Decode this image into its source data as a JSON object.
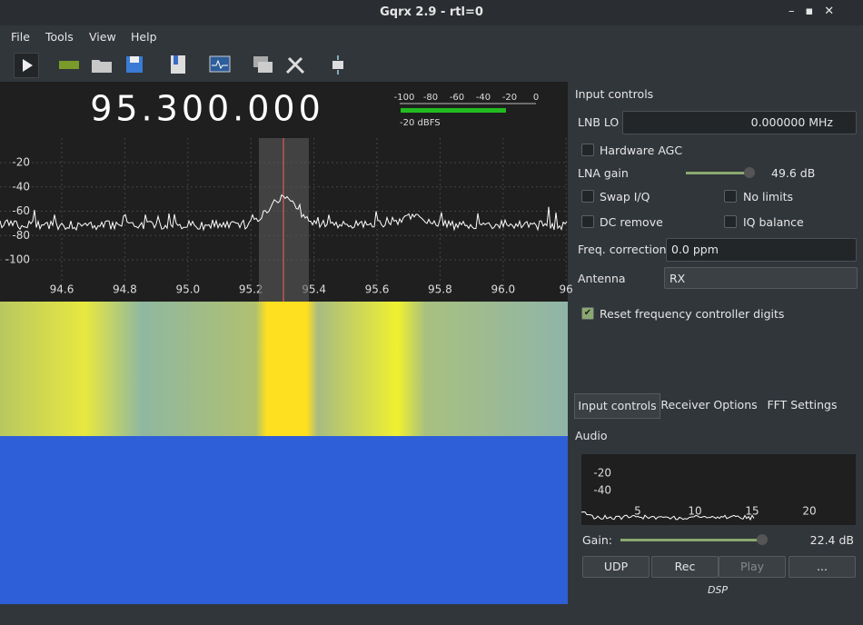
{
  "window": {
    "title": "Gqrx 2.9 - rtl=0"
  },
  "menu": [
    "File",
    "Tools",
    "View",
    "Help"
  ],
  "receiver": {
    "frequency": "95.300.000",
    "meter_ticks": [
      "-100",
      "-80",
      "-60",
      "-40",
      "-20",
      "0"
    ],
    "meter_label": "-20 dBFS",
    "spectrum_y_labels": [
      "-20",
      "-40",
      "-60",
      "-80",
      "-100"
    ],
    "spectrum_x_labels": [
      "94.6",
      "94.8",
      "95.0",
      "95.2",
      "95.4",
      "95.6",
      "95.8",
      "96.0",
      "96"
    ]
  },
  "input_controls": {
    "title": "Input controls",
    "lnb_lo_label": "LNB LO",
    "lnb_lo_value": "0.000000 MHz",
    "hardware_agc": "Hardware AGC",
    "lna_gain_label": "LNA gain",
    "lna_gain_value": "49.6 dB",
    "swap_iq": "Swap I/Q",
    "no_limits": "No limits",
    "dc_remove": "DC remove",
    "iq_balance": "IQ balance",
    "freq_correction_label": "Freq. correction",
    "freq_correction_value": "0.0 ppm",
    "antenna_label": "Antenna",
    "antenna_value": "RX",
    "reset_digits": "Reset frequency controller digits"
  },
  "tabs": [
    "Input controls",
    "Receiver Options",
    "FFT Settings"
  ],
  "audio": {
    "title": "Audio",
    "y_labels": [
      "-20",
      "-40"
    ],
    "x_labels": [
      "5",
      "10",
      "15",
      "20"
    ],
    "gain_label": "Gain:",
    "gain_value": "22.4 dB",
    "buttons": [
      "UDP",
      "Rec",
      "Play",
      "..."
    ],
    "dsp": "DSP"
  }
}
